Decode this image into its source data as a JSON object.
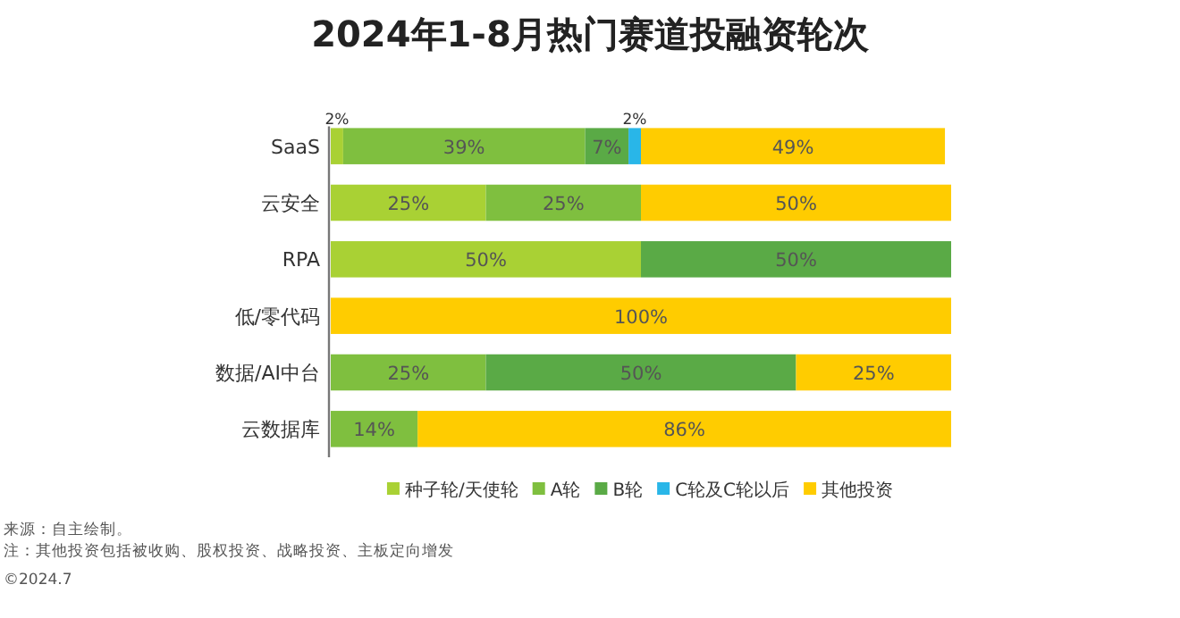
{
  "chart_data": {
    "type": "bar",
    "orientation": "horizontal",
    "stacked": true,
    "title": "2024年1-8月热门赛道投融资轮次",
    "categories": [
      "SaaS",
      "云安全",
      "RPA",
      "低/零代码",
      "数据/AI中台",
      "云数据库"
    ],
    "series": [
      {
        "name": "种子轮/天使轮",
        "color": "#a9d134",
        "values": [
          2,
          25,
          50,
          null,
          null,
          null
        ],
        "value_labels": [
          "2%",
          "25%",
          "50%",
          null,
          null,
          null
        ]
      },
      {
        "name": "A轮",
        "color": "#7fbf3f",
        "values": [
          39,
          25,
          null,
          null,
          25,
          14
        ],
        "value_labels": [
          "39%",
          "25%",
          null,
          null,
          "25%",
          "14%"
        ]
      },
      {
        "name": "B轮",
        "color": "#5aaa46",
        "values": [
          7,
          null,
          50,
          null,
          50,
          null
        ],
        "value_labels": [
          "7%",
          null,
          "50%",
          null,
          "50%",
          null
        ]
      },
      {
        "name": "C轮及C轮以后",
        "color": "#29b6e8",
        "values": [
          2,
          null,
          null,
          null,
          null,
          null
        ],
        "value_labels": [
          "2%",
          null,
          null,
          null,
          null,
          null
        ]
      },
      {
        "name": "其他投资",
        "color": "#ffcc00",
        "values": [
          49,
          50,
          null,
          100,
          25,
          86
        ],
        "value_labels": [
          "49%",
          "50%",
          null,
          "100%",
          "25%",
          "86%"
        ]
      }
    ],
    "legend": "bottom",
    "annotations": [
      "来源：自主绘制。",
      "注：其他投资包括被收购、股权投资、战略投资、主板定向增发",
      "©2024.7"
    ]
  }
}
